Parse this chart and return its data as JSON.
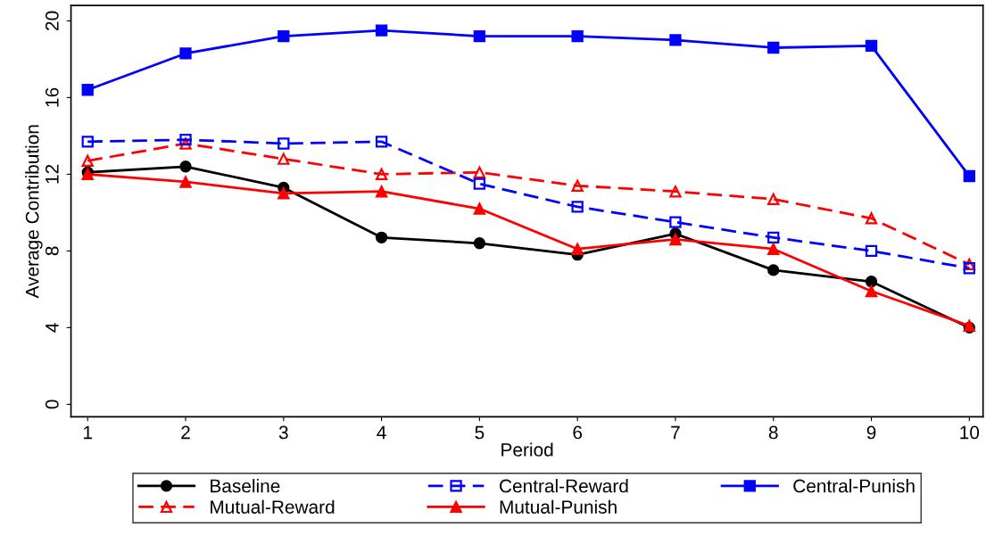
{
  "chart_data": {
    "type": "line",
    "xlabel": "Period",
    "ylabel": "Average Contribution",
    "x": [
      1,
      2,
      3,
      4,
      5,
      6,
      7,
      8,
      9,
      10
    ],
    "xlim": [
      0.83,
      10.14
    ],
    "xticks": [
      1,
      2,
      3,
      4,
      5,
      6,
      7,
      8,
      9,
      10
    ],
    "ylim": [
      -0.65,
      20.8
    ],
    "yticks": [
      0,
      4,
      8,
      12,
      16,
      20
    ],
    "grid": false,
    "legend": "bottom",
    "series": [
      {
        "name": "Baseline",
        "color": "#000000",
        "marker": "circle",
        "line_style": "solid",
        "values": [
          12.1,
          12.4,
          11.3,
          8.7,
          8.4,
          7.8,
          8.9,
          7.0,
          6.4,
          4.0
        ]
      },
      {
        "name": "Mutual-Reward",
        "color": "#ff0000",
        "marker": "triangle",
        "line_style": "dashed",
        "values": [
          12.7,
          13.6,
          12.8,
          12.0,
          12.1,
          11.4,
          11.1,
          10.7,
          9.7,
          7.3
        ]
      },
      {
        "name": "Central-Reward",
        "color": "#0000ff",
        "marker": "square",
        "line_style": "dashed",
        "values": [
          13.7,
          13.8,
          13.6,
          13.7,
          11.5,
          10.3,
          9.5,
          8.7,
          8.0,
          7.1
        ]
      },
      {
        "name": "Mutual-Punish",
        "color": "#ff0000",
        "marker": "triangle",
        "line_style": "solid",
        "values": [
          12.0,
          11.6,
          11.0,
          11.1,
          10.2,
          8.1,
          8.6,
          8.1,
          5.9,
          4.1
        ]
      },
      {
        "name": "Central-Punish",
        "color": "#0000ff",
        "marker": "square",
        "line_style": "solid",
        "values": [
          16.4,
          18.3,
          19.2,
          19.5,
          19.2,
          19.2,
          19.0,
          18.6,
          18.7,
          11.9
        ]
      }
    ]
  }
}
